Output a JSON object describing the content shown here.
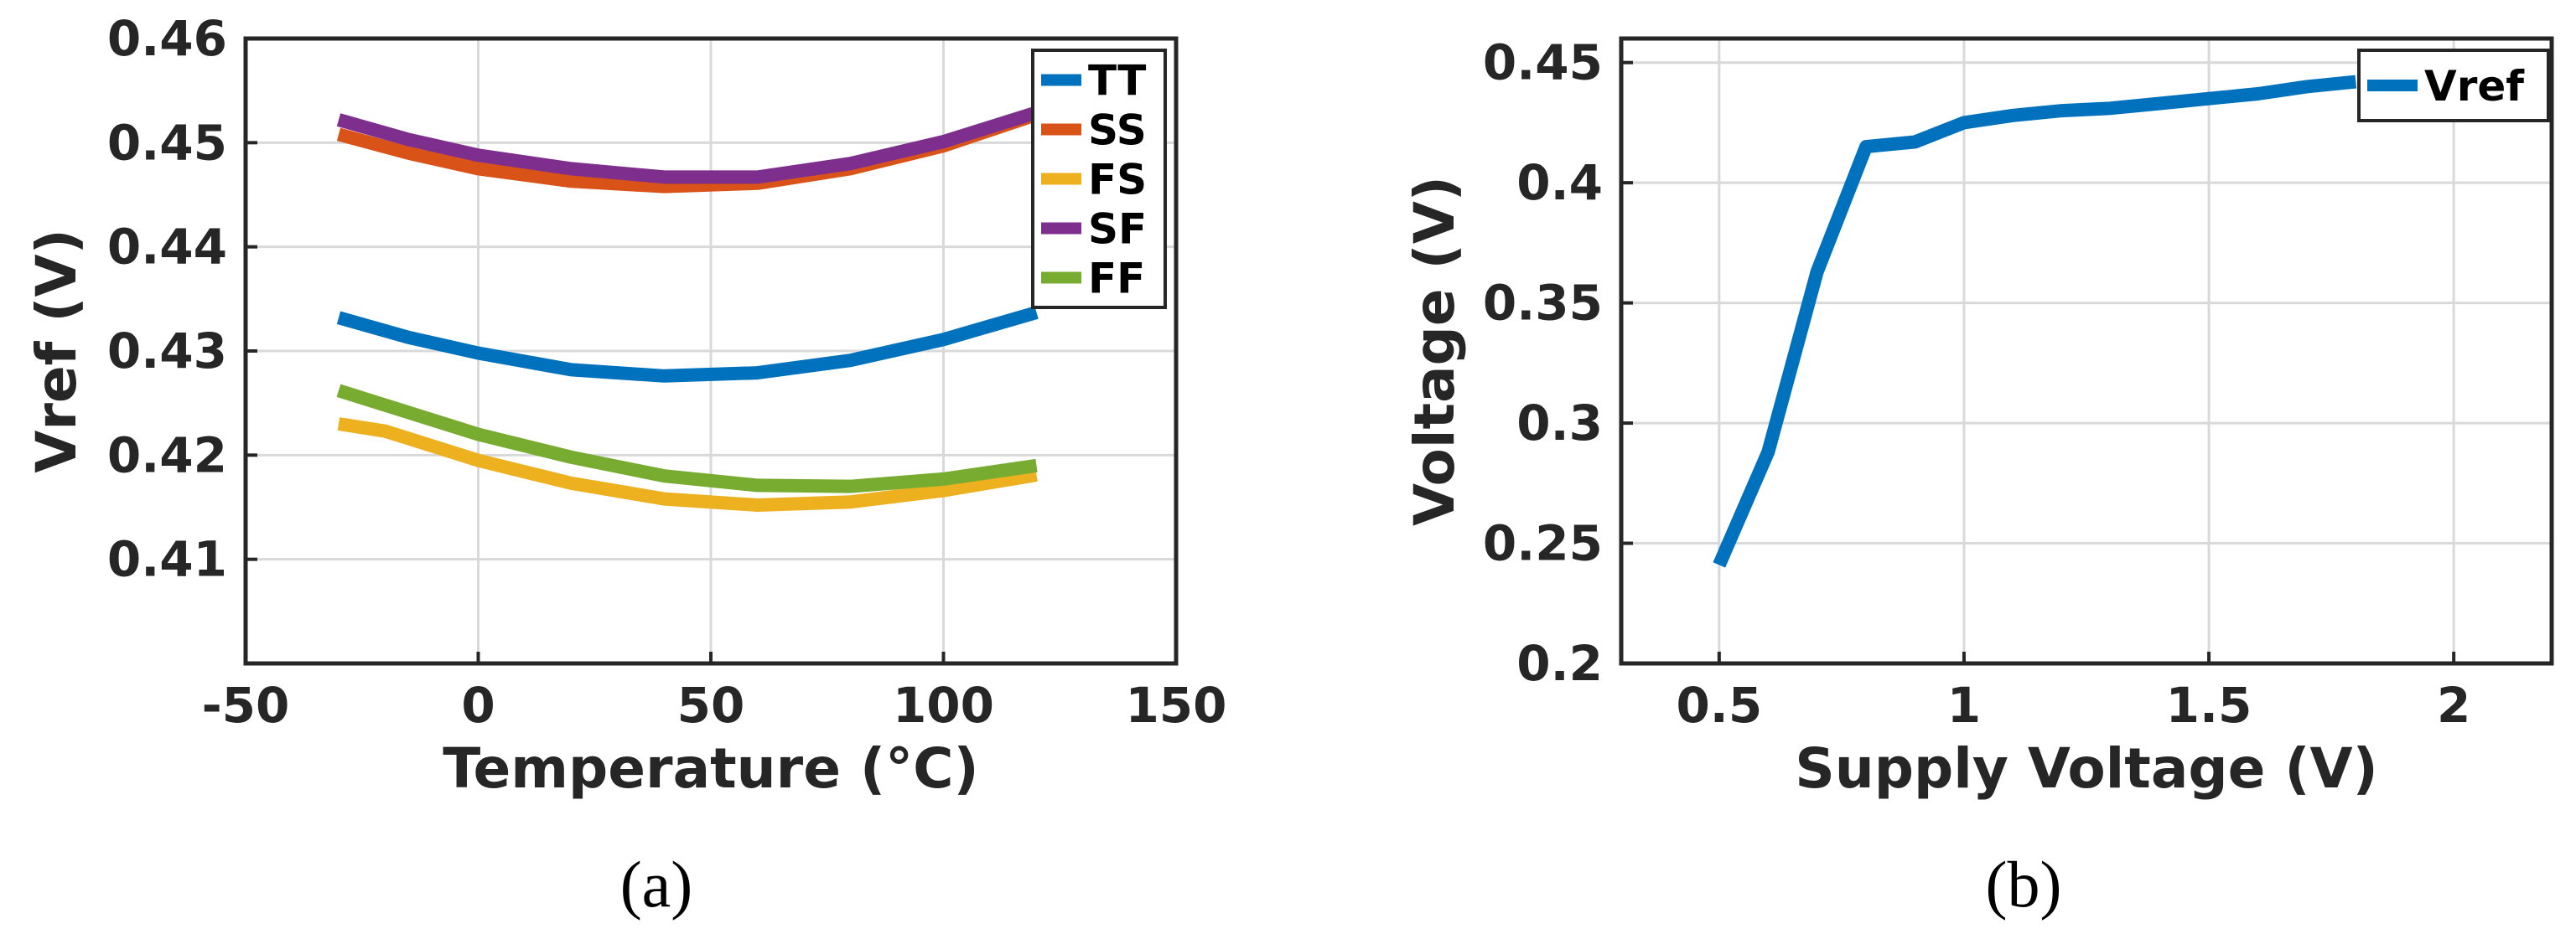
{
  "chart_data": [
    {
      "type": "line",
      "caption": "(a)",
      "xlabel": "Temperature (°C)",
      "ylabel": "Vref (V)",
      "xlim": [
        -50,
        150
      ],
      "ylim": [
        0.4,
        0.46
      ],
      "xticks": [
        -50,
        0,
        50,
        100,
        150
      ],
      "xtick_labels": [
        "-50",
        "0",
        "50",
        "100",
        "150"
      ],
      "yticks": [
        0.41,
        0.42,
        0.43,
        0.44,
        0.45,
        0.46
      ],
      "ytick_labels": [
        "0.41",
        "0.42",
        "0.43",
        "0.44",
        "0.45",
        "0.46"
      ],
      "grid": true,
      "legend_position": "top-right",
      "series": [
        {
          "name": "TT",
          "color": "#0072BD",
          "x": [
            -30,
            -15,
            0,
            20,
            40,
            60,
            80,
            100,
            120
          ],
          "y": [
            0.4332,
            0.4313,
            0.4298,
            0.4282,
            0.4276,
            0.4279,
            0.4291,
            0.4311,
            0.4337
          ]
        },
        {
          "name": "SS",
          "color": "#D95319",
          "x": [
            -30,
            -15,
            0,
            20,
            40,
            60,
            80,
            100,
            120
          ],
          "y": [
            0.4508,
            0.449,
            0.4475,
            0.4463,
            0.4458,
            0.4461,
            0.4475,
            0.4497,
            0.4527
          ]
        },
        {
          "name": "FS",
          "color": "#EDB120",
          "x": [
            -30,
            -20,
            0,
            20,
            40,
            60,
            80,
            100,
            120
          ],
          "y": [
            0.423,
            0.4223,
            0.4195,
            0.4173,
            0.4158,
            0.4152,
            0.4155,
            0.4166,
            0.4181
          ]
        },
        {
          "name": "SF",
          "color": "#7E2F8E",
          "x": [
            -30,
            -15,
            0,
            20,
            40,
            60,
            80,
            100,
            120
          ],
          "y": [
            0.4522,
            0.4503,
            0.4488,
            0.4475,
            0.4467,
            0.4467,
            0.448,
            0.4501,
            0.4529
          ]
        },
        {
          "name": "FF",
          "color": "#77AC30",
          "x": [
            -30,
            -15,
            0,
            20,
            40,
            60,
            80,
            100,
            120
          ],
          "y": [
            0.4262,
            0.4241,
            0.422,
            0.4198,
            0.418,
            0.4171,
            0.417,
            0.4177,
            0.419
          ]
        }
      ]
    },
    {
      "type": "line",
      "caption": "(b)",
      "xlabel": "Supply Voltage (V)",
      "ylabel": "Voltage (V)",
      "xlim": [
        0.3,
        2.2
      ],
      "ylim": [
        0.2,
        0.46
      ],
      "xticks": [
        0.5,
        1,
        1.5,
        2
      ],
      "xtick_labels": [
        "0.5",
        "1",
        "1.5",
        "2"
      ],
      "yticks": [
        0.2,
        0.25,
        0.3,
        0.35,
        0.4,
        0.45
      ],
      "ytick_labels": [
        "0.2",
        "0.25",
        "0.3",
        "0.35",
        "0.4",
        "0.45"
      ],
      "grid": true,
      "legend_position": "top-right",
      "series": [
        {
          "name": "Vref",
          "color": "#0072BD",
          "x": [
            0.5,
            0.6,
            0.7,
            0.8,
            0.9,
            1.0,
            1.1,
            1.2,
            1.3,
            1.4,
            1.5,
            1.6,
            1.7,
            1.8
          ],
          "y": [
            0.241,
            0.288,
            0.363,
            0.415,
            0.417,
            0.425,
            0.428,
            0.43,
            0.431,
            0.433,
            0.435,
            0.437,
            0.44,
            0.442
          ]
        }
      ]
    }
  ]
}
